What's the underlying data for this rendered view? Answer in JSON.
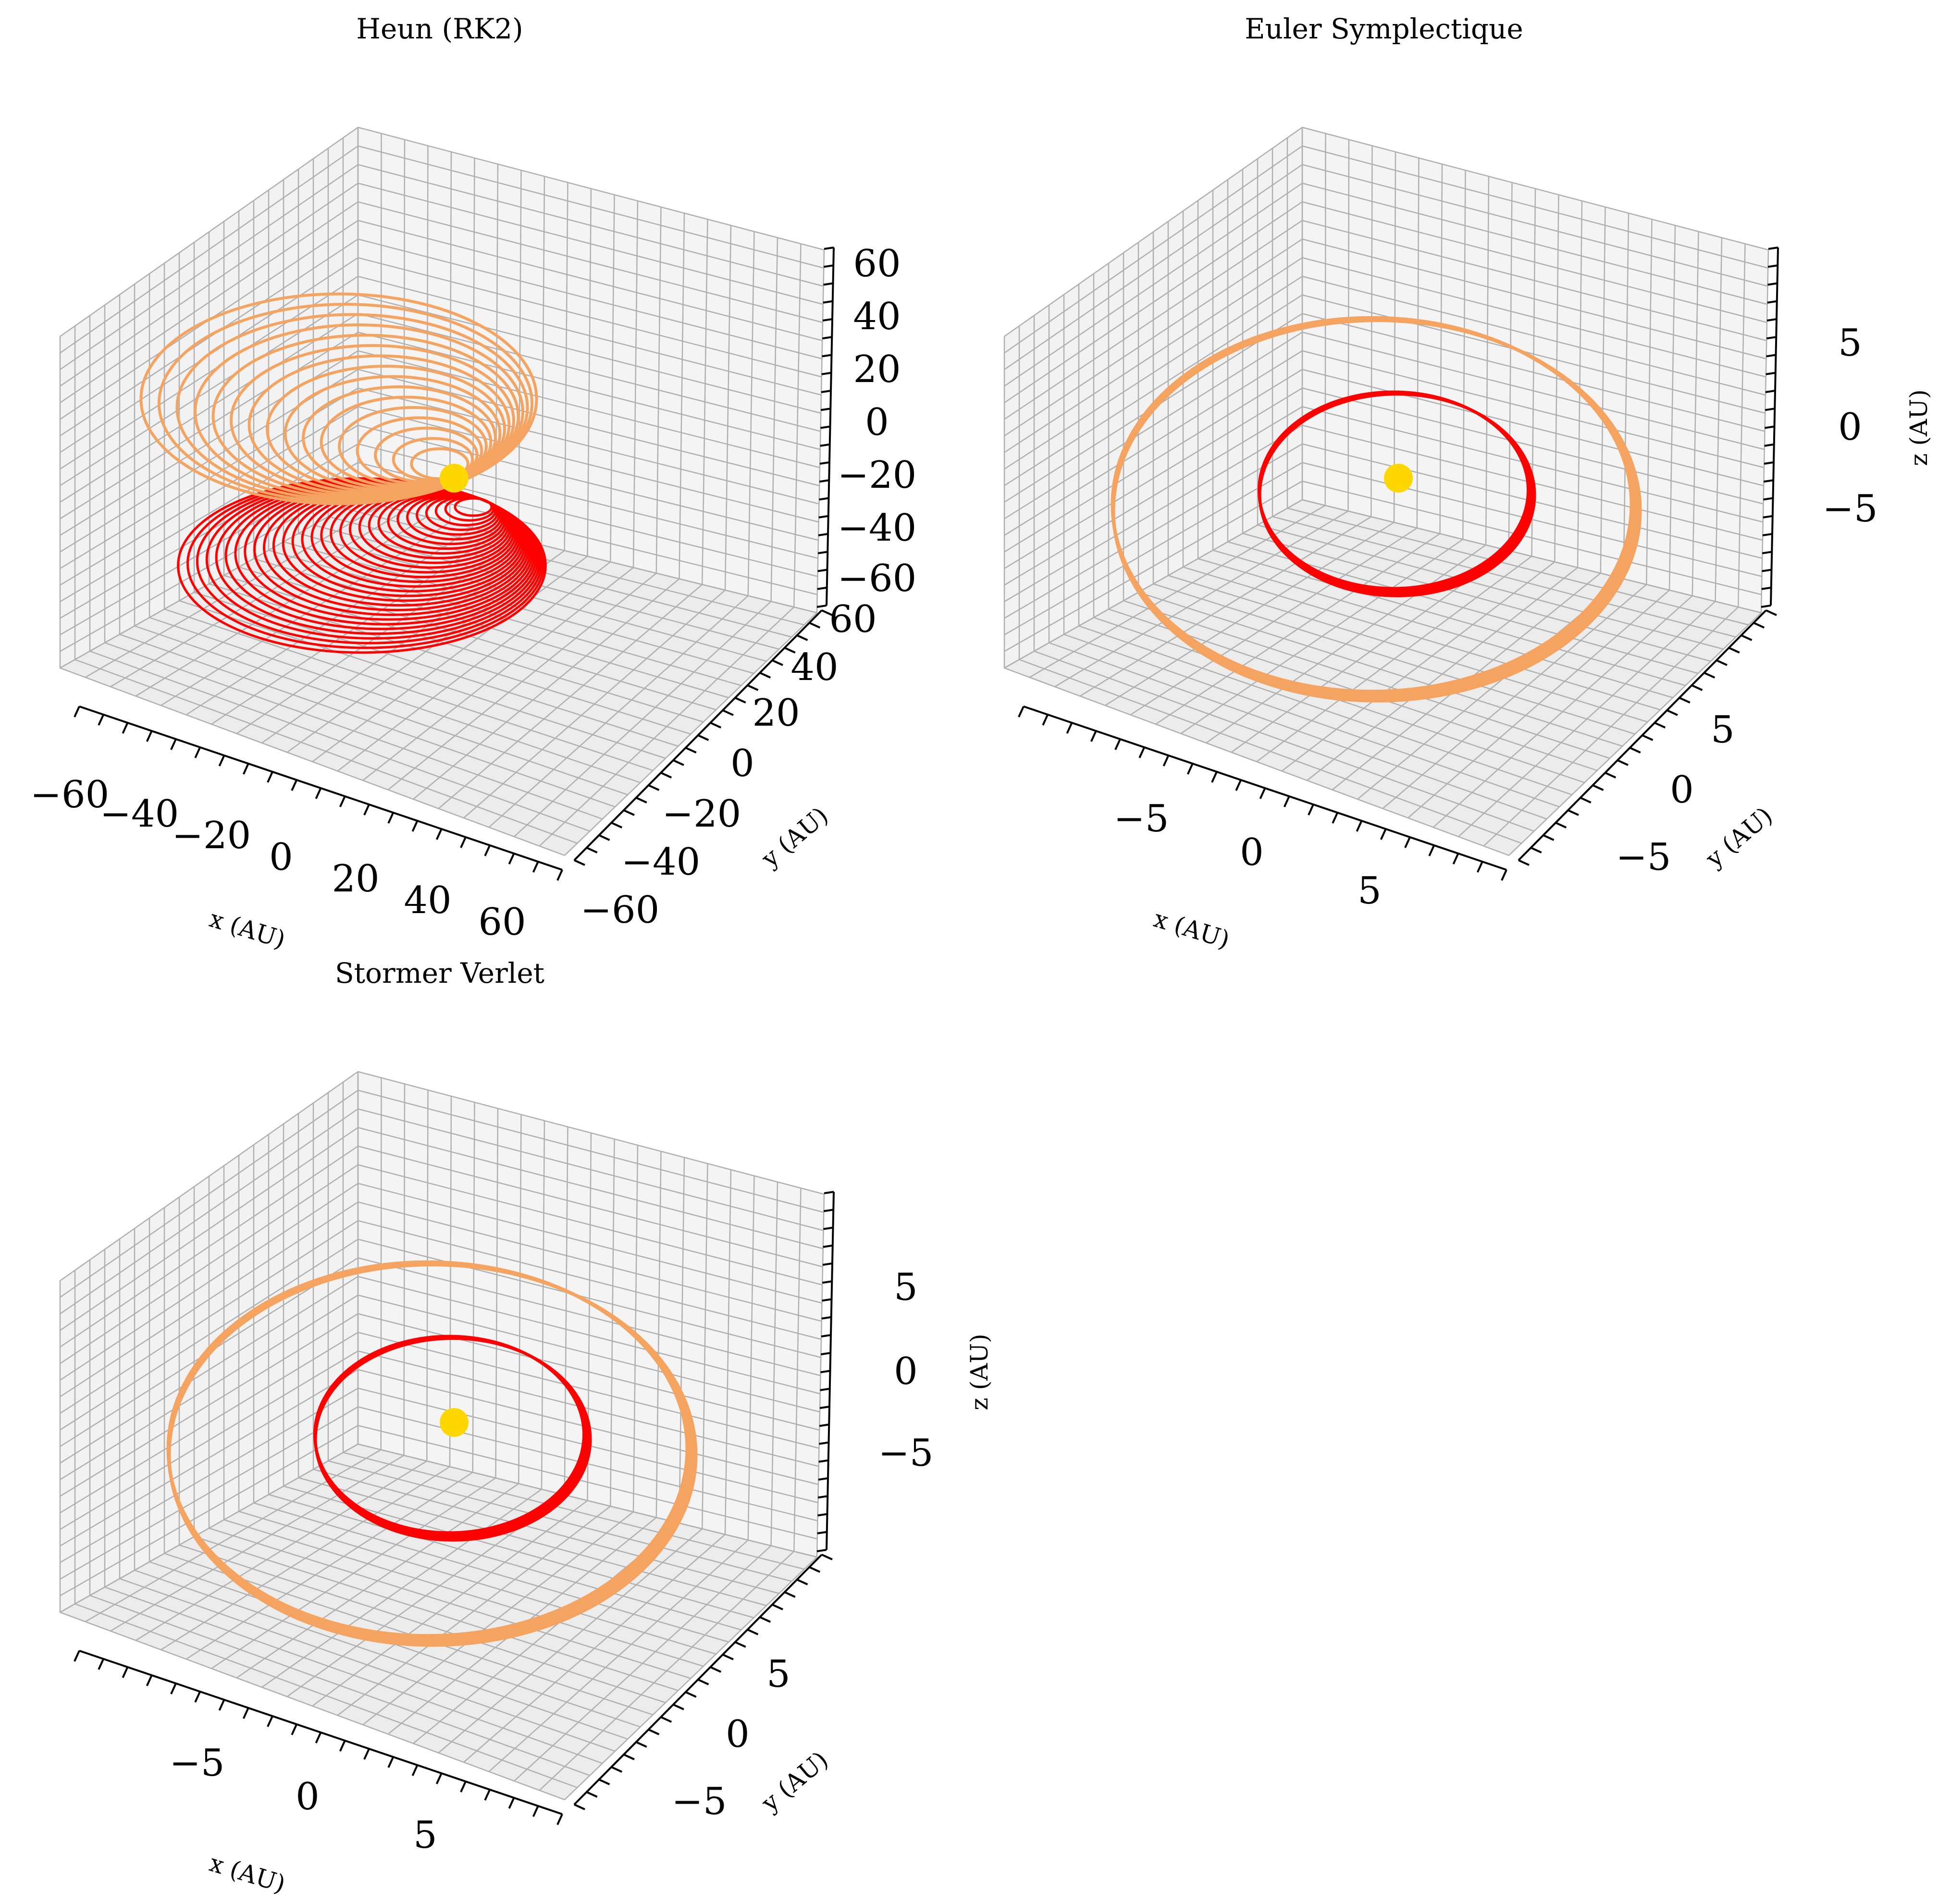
{
  "figure": {
    "background": "#ffffff",
    "pane_colors": {
      "back": "#f2f2f2",
      "side": "#e6e6e6",
      "floor": "#ececec",
      "grid": "#b0b0b0"
    },
    "trajectory_colors": {
      "inner_orbit": "#ff0000",
      "outer_orbit": "#f4a460",
      "sun": "#ffd700"
    }
  },
  "chart_data": [
    {
      "type": "line",
      "projection": "3d",
      "title": "Heun (RK2)",
      "xlabel": "x (AU)",
      "ylabel": "y (AU)",
      "zlabel": "",
      "xlim": [
        -70,
        70
      ],
      "ylim": [
        -70,
        70
      ],
      "zlim": [
        -70,
        70
      ],
      "xticks": [
        "−60",
        "−40",
        "−20",
        "0",
        "20",
        "40",
        "60"
      ],
      "yticks": [
        "−60",
        "−40",
        "−20",
        "0",
        "20",
        "40",
        "60"
      ],
      "zticks": [
        "−60",
        "−40",
        "−20",
        "0",
        "20",
        "40",
        "60"
      ],
      "grid": true,
      "sun": {
        "x": 0,
        "y": 0,
        "z": 0,
        "color": "#ffd700"
      },
      "series": [
        {
          "color": "#ff0000",
          "behavior": "spiraling outward (unstable)",
          "orbit_radius_range_au": [
            2,
            60
          ],
          "vertical_extent_au": [
            -35,
            0
          ]
        },
        {
          "color": "#f4a460",
          "behavior": "spiraling outward (unstable)",
          "orbit_radius_range_au": [
            4,
            62
          ],
          "vertical_extent_au": [
            -10,
            38
          ]
        }
      ]
    },
    {
      "type": "line",
      "projection": "3d",
      "title": "Euler Symplectique",
      "xlabel": "x (AU)",
      "ylabel": "y (AU)",
      "zlabel": "z (AU)",
      "xlim": [
        -10,
        10
      ],
      "ylim": [
        -10,
        10
      ],
      "zlim": [
        -10,
        10
      ],
      "xticks": [
        "−5",
        "0",
        "5"
      ],
      "yticks": [
        "−5",
        "0",
        "5"
      ],
      "zticks": [
        "−5",
        "0",
        "5"
      ],
      "grid": true,
      "sun": {
        "x": 0,
        "y": 0,
        "z": 0,
        "color": "#ffd700"
      },
      "series": [
        {
          "color": "#ff0000",
          "behavior": "closed orbit",
          "orbit_radius_au": 5.2
        },
        {
          "color": "#f4a460",
          "behavior": "closed orbit",
          "orbit_radius_au": 9.5
        }
      ]
    },
    {
      "type": "line",
      "projection": "3d",
      "title": "Stormer Verlet",
      "xlabel": "x (AU)",
      "ylabel": "y (AU)",
      "zlabel": "z (AU)",
      "xlim": [
        -10,
        10
      ],
      "ylim": [
        -10,
        10
      ],
      "zlim": [
        -10,
        10
      ],
      "xticks": [
        "−5",
        "0",
        "5"
      ],
      "yticks": [
        "−5",
        "0",
        "5"
      ],
      "zticks": [
        "−5",
        "0",
        "5"
      ],
      "grid": true,
      "sun": {
        "x": 0,
        "y": 0,
        "z": 0,
        "color": "#ffd700"
      },
      "series": [
        {
          "color": "#ff0000",
          "behavior": "closed orbit",
          "orbit_radius_au": 5.2
        },
        {
          "color": "#f4a460",
          "behavior": "closed orbit",
          "orbit_radius_au": 9.5
        }
      ]
    }
  ]
}
